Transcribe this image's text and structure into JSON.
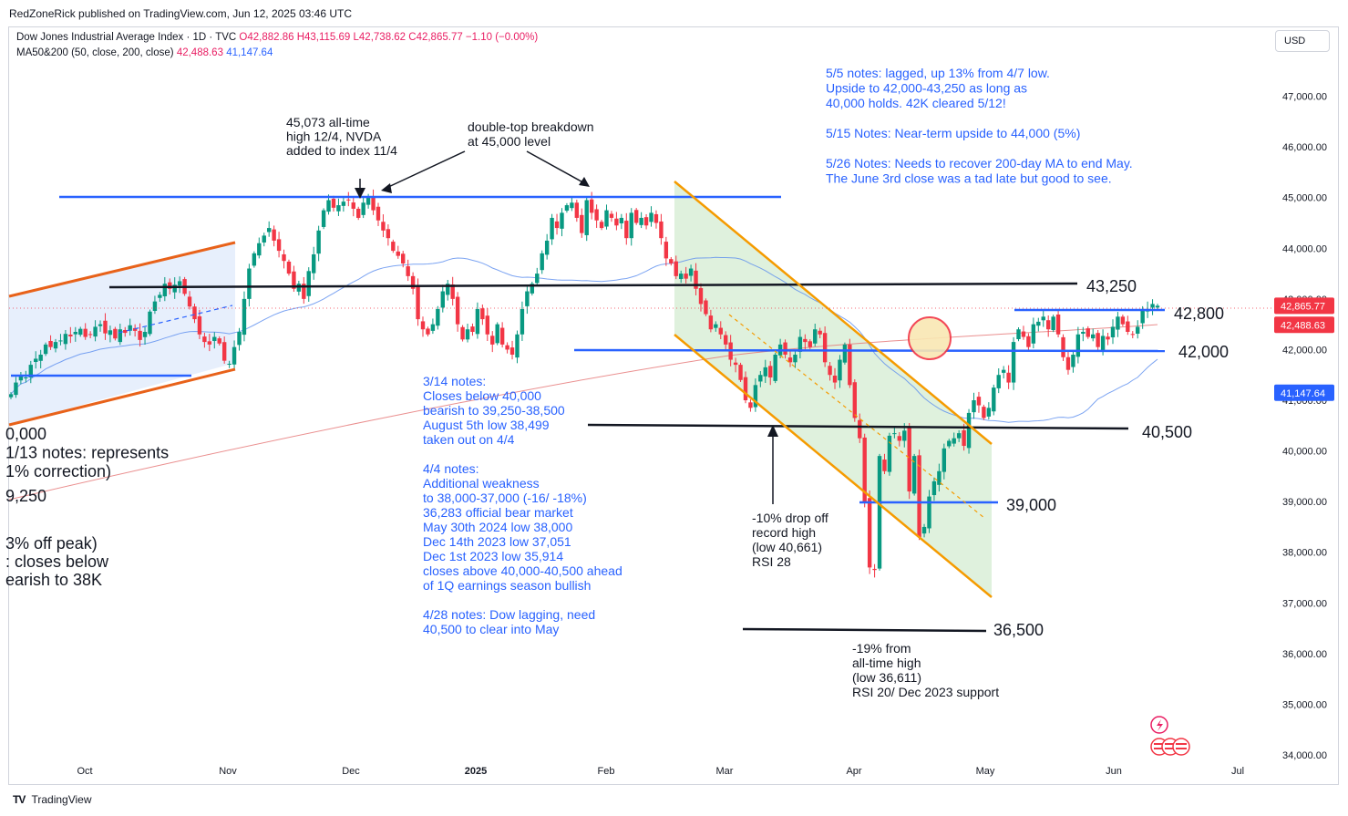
{
  "header": {
    "published": "RedZoneRick published on TradingView.com, Jun 12, 2025 03:46 UTC",
    "symbol_line": "Dow Jones Industrial Average Index · 1D · TVC",
    "ohlc": "O42,882.86 H43,115.69 L42,738.62 C42,865.77 −1.10 (−0.00%)",
    "ma_label": "MA50&200 (50, close, 200, close)",
    "ma50_value": "42,488.63",
    "ma200_value": "41,147.64",
    "currency": "USD"
  },
  "footer": {
    "brand": "TradingView",
    "logo": "TV"
  },
  "colors": {
    "up": "#089981",
    "down": "#f23645",
    "ma50": "#e57373",
    "ma200": "#5b8def",
    "note_blue": "#2962ff",
    "orange": "#f5a623",
    "channel_fill": "#dcefd9",
    "left_fill": "#e3ecfc"
  },
  "chart_data": {
    "type": "candlestick",
    "ylim": [
      34000,
      48000
    ],
    "y_ticks": [
      "34,000.00",
      "35,000.00",
      "36,000.00",
      "37,000.00",
      "38,000.00",
      "39,000.00",
      "40,000.00",
      "41,000.00",
      "42,000.00",
      "43,000.00",
      "44,000.00",
      "45,000.00",
      "46,000.00",
      "47,000.00"
    ],
    "x_ticks": [
      "Oct",
      "Nov",
      "Dec",
      "2025",
      "Feb",
      "Mar",
      "Apr",
      "May",
      "Jun",
      "Jul"
    ],
    "price_labels": [
      {
        "text": "42,865.77",
        "value": 42865.77,
        "color": "#f23645"
      },
      {
        "text": "42,488.63",
        "value": 42488.63,
        "color": "#f23645"
      },
      {
        "text": "41,147.64",
        "value": 41147.64,
        "color": "#2962ff"
      }
    ],
    "levels": [
      {
        "label": "43,250",
        "value": 43250
      },
      {
        "label": "42,800",
        "value": 42800
      },
      {
        "label": "42,000",
        "value": 42000
      },
      {
        "label": "40,500",
        "value": 40500
      },
      {
        "label": "39,000",
        "value": 39000
      },
      {
        "label": "36,500",
        "value": 36500
      }
    ],
    "closes": [
      41120,
      41350,
      41500,
      41450,
      41700,
      41820,
      41900,
      42100,
      42050,
      42150,
      42180,
      42310,
      42260,
      42350,
      42410,
      42250,
      42300,
      42450,
      42500,
      42320,
      42380,
      42220,
      42400,
      42330,
      42480,
      42370,
      42190,
      42350,
      42750,
      42950,
      43080,
      43300,
      43200,
      43280,
      43350,
      43100,
      42850,
      42600,
      42300,
      42150,
      42100,
      42250,
      42120,
      41780,
      41720,
      42050,
      42350,
      43000,
      43600,
      43900,
      44100,
      44250,
      44400,
      44150,
      43950,
      43750,
      43500,
      43200,
      43300,
      43000,
      43550,
      43880,
      44350,
      44750,
      44950,
      44800,
      44850,
      44920,
      44960,
      44780,
      44600,
      44900,
      45015,
      44750,
      44550,
      44350,
      44200,
      43950,
      43850,
      43700,
      43450,
      43200,
      42600,
      42400,
      42300,
      42500,
      42800,
      43150,
      43300,
      43000,
      42500,
      42200,
      42400,
      42350,
      42800,
      42600,
      42300,
      42100,
      42500,
      42100,
      42000,
      41900,
      42300,
      42800,
      43150,
      43300,
      43500,
      43900,
      44150,
      44600,
      44400,
      44700,
      44850,
      44900,
      44600,
      44300,
      44950,
      44700,
      44550,
      44400,
      44750,
      44600,
      44450,
      44600,
      44200,
      44700,
      44500,
      44600,
      44450,
      44700,
      44500,
      44200,
      43800,
      43700,
      43450,
      43500,
      43400,
      43600,
      43200,
      42900,
      42700,
      42400,
      42500,
      42300,
      42100,
      41800,
      41700,
      41400,
      41000,
      40850,
      41300,
      41500,
      41650,
      41450,
      41900,
      42100,
      41900,
      41750,
      41900,
      42250,
      42150,
      42050,
      42400,
      42300,
      41750,
      41500,
      41350,
      41800,
      42100,
      41300,
      40650,
      40250,
      39000,
      37700,
      37650,
      39900,
      39600,
      40300,
      40350,
      40200,
      40400,
      39200,
      39900,
      38300,
      38500,
      39100,
      39400,
      39600,
      40050,
      40200,
      40250,
      40350,
      40100,
      40750,
      41000,
      40900,
      40650,
      40850,
      41250,
      41500,
      41600,
      41350,
      42150,
      42400,
      42250,
      42050,
      42500,
      42550,
      42650,
      42400,
      42650,
      42300,
      41850,
      41600,
      41900,
      42300,
      42350,
      42250,
      42300,
      42050,
      42270,
      42200,
      42450,
      42650,
      42500,
      42350,
      42300,
      42450,
      42780,
      42800,
      42900,
      42866
    ],
    "notes": [
      {
        "lines": [
          "5/5 notes: lagged, up 13% from 4/7 low.",
          "Upside to 42,000-43,250 as long as",
          "40,000 holds. 42K cleared 5/12!",
          "",
          "5/15 Notes: Near-term upside to 44,000 (5%)",
          "",
          "5/26 Notes: Needs to recover 200-day MA to end May.",
          "The June 3rd close was a tad late but good to see."
        ],
        "color": "#2962ff"
      },
      {
        "lines": [
          "3/14 notes:",
          "Closes below 40,000",
          "bearish to 39,250-38,500",
          "August 5th low 38,499",
          "taken out on 4/4",
          "",
          "4/4 notes:",
          "Additional weakness",
          "to 38,000-37,000 (-16/ -18%)",
          "36,283 official bear market",
          "May 30th 2024 low 38,000",
          "Dec 14th 2023 low 37,051",
          "Dec 1st 2023 low 35,914",
          "closes above 40,000-40,500 ahead",
          "of 1Q earnings season bullish",
          "",
          "4/28 notes: Dow lagging, need",
          "40,500 to clear into May"
        ],
        "color": "#2962ff"
      },
      {
        "lines": [
          "45,073 all-time",
          "high 12/4, NVDA",
          "added to index 11/4"
        ],
        "color": "#131722"
      },
      {
        "lines": [
          "double-top breakdown",
          "at 45,000 level"
        ],
        "color": "#131722"
      },
      {
        "lines": [
          "-10% drop off",
          "record high",
          "(low 40,661)",
          "RSI 28"
        ],
        "color": "#131722"
      },
      {
        "lines": [
          "-19% from",
          "all-time high",
          "(low 36,611)",
          "RSI 20/ Dec 2023 support"
        ],
        "color": "#131722"
      },
      {
        "lines": [
          "0,000",
          "1/13 notes: represents",
          "1% correction)"
        ],
        "color": "#131722"
      },
      {
        "lines": [
          "9,250"
        ],
        "color": "#131722"
      },
      {
        "lines": [
          "3% off peak)",
          ": closes below",
          "earish to 38K"
        ],
        "color": "#131722"
      }
    ]
  }
}
